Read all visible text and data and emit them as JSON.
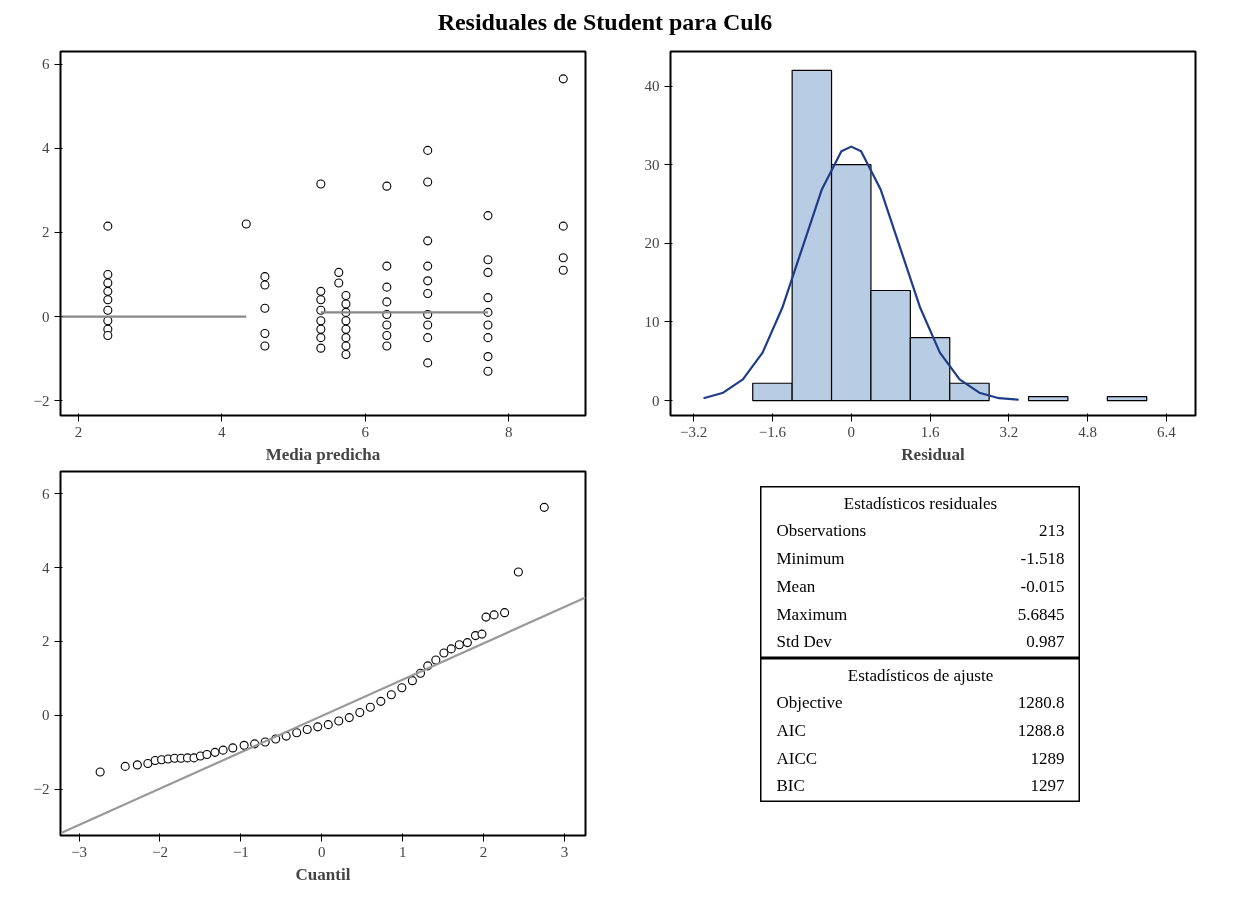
{
  "chart_data": [
    {
      "type": "scatter",
      "title": "Residuales de Student para Cul6",
      "xlabel": "Media predicha",
      "xlim": [
        1.75,
        9.07
      ],
      "ylim": [
        -2.35,
        6.3
      ],
      "xticks": [
        2,
        4,
        6,
        8
      ],
      "yticks": [
        -2,
        0,
        2,
        4,
        6
      ],
      "grid": false,
      "series": [
        {
          "color": "#000000",
          "marker": "circle",
          "x": [
            2.41,
            2.41,
            2.41,
            2.41,
            2.41,
            2.41,
            2.41,
            2.41,
            2.41,
            4.34,
            4.6,
            4.6,
            4.6,
            4.6,
            4.6,
            5.38,
            5.38,
            5.38,
            5.38,
            5.38,
            5.38,
            5.38,
            5.38,
            5.63,
            5.63,
            5.73,
            5.73,
            5.73,
            5.73,
            5.73,
            5.73,
            5.73,
            5.73,
            6.3,
            6.3,
            6.3,
            6.3,
            6.3,
            6.3,
            6.3,
            6.3,
            6.87,
            6.87,
            6.87,
            6.87,
            6.87,
            6.87,
            6.87,
            6.87,
            6.87,
            6.87,
            7.71,
            7.71,
            7.71,
            7.71,
            7.71,
            7.71,
            7.71,
            7.71,
            7.71,
            8.76,
            8.76,
            8.76,
            8.76
          ],
          "values": [
            2.15,
            1.0,
            0.8,
            0.6,
            0.4,
            0.15,
            -0.1,
            -0.3,
            -0.45,
            2.2,
            0.95,
            0.75,
            0.2,
            -0.4,
            -0.7,
            3.15,
            0.6,
            0.4,
            0.15,
            -0.1,
            -0.3,
            -0.5,
            -0.75,
            1.05,
            0.8,
            0.5,
            0.3,
            0.1,
            -0.1,
            -0.3,
            -0.5,
            -0.7,
            -0.9,
            3.1,
            1.2,
            0.7,
            0.35,
            0.05,
            -0.2,
            -0.45,
            -0.7,
            3.95,
            3.2,
            1.8,
            1.2,
            0.85,
            0.55,
            0.05,
            -0.2,
            -0.5,
            -1.1,
            2.4,
            1.35,
            1.05,
            0.45,
            0.1,
            -0.2,
            -0.5,
            -0.95,
            -1.3,
            5.65,
            2.15,
            1.4,
            1.1
          ]
        },
        {
          "type": "line",
          "color": "#888888",
          "x": [
            1.75,
            4.34
          ],
          "values": [
            0,
            0
          ]
        },
        {
          "type": "line",
          "color": "#888888",
          "x": [
            5.38,
            7.71
          ],
          "values": [
            0.1,
            0.1
          ]
        }
      ]
    },
    {
      "type": "histogram",
      "xlabel": "Residual",
      "xlim": [
        -3.67,
        6.99
      ],
      "ylim": [
        -1.9,
        44.4
      ],
      "xticks": [
        -3.2,
        -1.6,
        0,
        1.6,
        3.2,
        4.8,
        6.4
      ],
      "yticks": [
        0,
        10,
        20,
        30,
        40
      ],
      "grid": false,
      "series": [
        {
          "color": "#b8cce4",
          "bins": [
            -2.0,
            -1.2,
            -0.4,
            0.4,
            1.2,
            2.0,
            2.8,
            3.6,
            4.4,
            5.2,
            6.0
          ],
          "values": [
            2.2,
            42,
            30,
            14,
            8,
            2.2,
            null,
            0.5,
            null,
            0.5
          ]
        },
        {
          "type": "line",
          "color": "#1f3c88",
          "x": [
            -3.0,
            -2.6,
            -2.2,
            -1.8,
            -1.4,
            -1.0,
            -0.6,
            -0.2,
            0,
            0.2,
            0.6,
            1.0,
            1.4,
            1.8,
            2.2,
            2.6,
            3.0,
            3.4
          ],
          "values": [
            0.3,
            1.0,
            2.7,
            6.1,
            11.8,
            19.3,
            26.8,
            31.7,
            32.3,
            31.7,
            26.8,
            19.3,
            11.8,
            6.1,
            2.7,
            1.0,
            0.3,
            0.1
          ]
        }
      ]
    },
    {
      "type": "scatter",
      "xlabel": "Cuantil",
      "xlim": [
        -3.23,
        3.26
      ],
      "ylim": [
        -3.25,
        6.6
      ],
      "xticks": [
        -3,
        -2,
        -1,
        0,
        1,
        2,
        3
      ],
      "yticks": [
        -2,
        0,
        2,
        4,
        6
      ],
      "grid": false,
      "series": [
        {
          "color": "#000000",
          "marker": "circle",
          "x": [
            -2.74,
            -2.43,
            -2.28,
            -2.15,
            -2.06,
            -1.98,
            -1.9,
            -1.82,
            -1.74,
            -1.66,
            -1.58,
            -1.5,
            -1.42,
            -1.32,
            -1.22,
            -1.1,
            -0.96,
            -0.83,
            -0.7,
            -0.57,
            -0.44,
            -0.31,
            -0.18,
            -0.05,
            0.08,
            0.21,
            0.34,
            0.47,
            0.6,
            0.73,
            0.86,
            0.99,
            1.12,
            1.22,
            1.31,
            1.41,
            1.51,
            1.6,
            1.7,
            1.8,
            1.9,
            1.98,
            2.03,
            2.13,
            2.26,
            2.43,
            2.75
          ],
          "values": [
            -1.53,
            -1.38,
            -1.34,
            -1.3,
            -1.22,
            -1.2,
            -1.18,
            -1.16,
            -1.16,
            -1.15,
            -1.15,
            -1.1,
            -1.06,
            -1.0,
            -0.94,
            -0.88,
            -0.81,
            -0.77,
            -0.72,
            -0.64,
            -0.56,
            -0.47,
            -0.38,
            -0.31,
            -0.25,
            -0.15,
            -0.06,
            0.08,
            0.22,
            0.38,
            0.56,
            0.75,
            0.94,
            1.14,
            1.34,
            1.5,
            1.69,
            1.8,
            1.91,
            1.97,
            2.16,
            2.2,
            2.66,
            2.72,
            2.78,
            3.88,
            5.63
          ]
        },
        {
          "type": "line",
          "color": "#999999",
          "x": [
            -3.23,
            3.26
          ],
          "values": [
            -3.19,
            3.19
          ]
        }
      ]
    },
    {
      "type": "other",
      "title": "Estadísticos residuales",
      "annotations": [
        "Observations",
        "213",
        "Minimum",
        "-1.518",
        "Mean",
        "-0.015",
        "Maximum",
        "5.6845",
        "Std Dev",
        "0.987"
      ]
    },
    {
      "type": "other",
      "title": "Estadísticos de ajuste",
      "annotations": [
        "Objective",
        "1280.8",
        "AIC",
        "1288.8",
        "AICC",
        "1289",
        "BIC",
        "1297"
      ]
    }
  ]
}
